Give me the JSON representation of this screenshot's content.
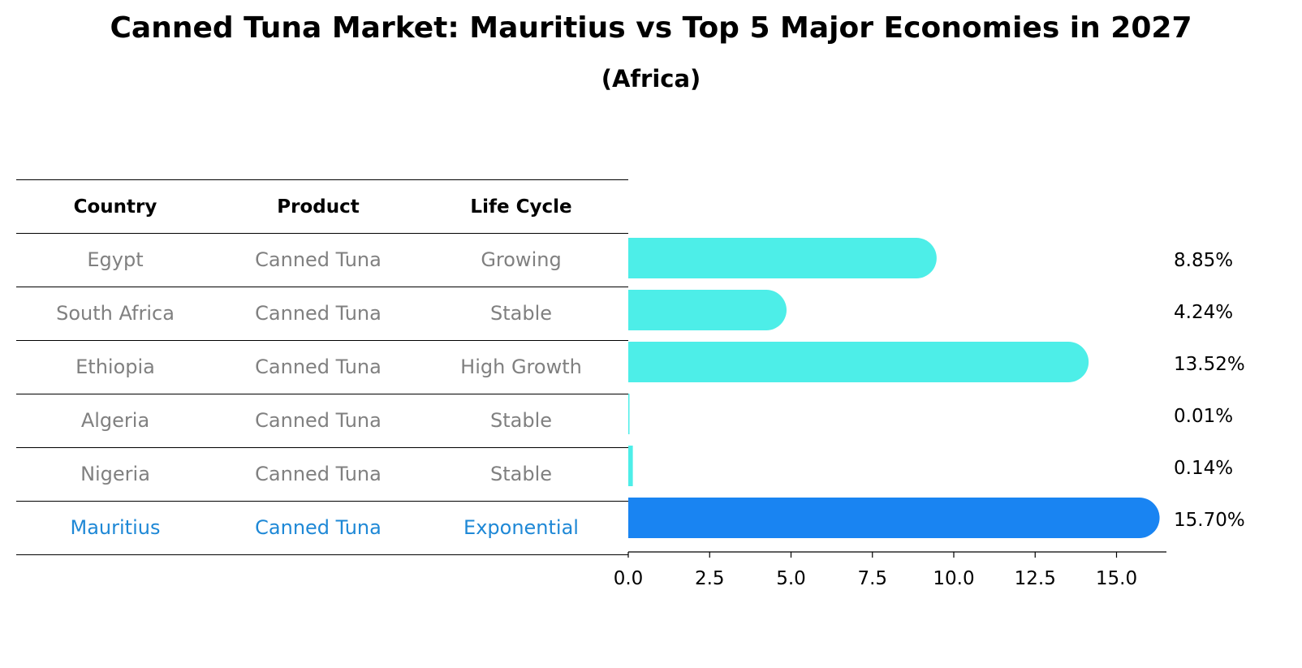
{
  "title": "Canned Tuna Market: Mauritius vs Top 5 Major Economies in 2027",
  "subtitle": "(Africa)",
  "table": {
    "headers": [
      "Country",
      "Product",
      "Life Cycle"
    ],
    "rows": [
      [
        "Egypt",
        "Canned Tuna",
        "Growing"
      ],
      [
        "South Africa",
        "Canned Tuna",
        "Stable"
      ],
      [
        "Ethiopia",
        "Canned Tuna",
        "High Growth"
      ],
      [
        "Algeria",
        "Canned Tuna",
        "Stable"
      ],
      [
        "Nigeria",
        "Canned Tuna",
        "Stable"
      ],
      [
        "Mauritius",
        "Canned Tuna",
        "Exponential"
      ]
    ],
    "highlight_row": 5
  },
  "colors": {
    "bar": "#4deee8",
    "highlight": "#1984f2",
    "highlight_text": "#1e88d6",
    "muted_text": "#808080"
  },
  "chart_data": {
    "type": "bar",
    "orientation": "horizontal",
    "categories": [
      "Egypt",
      "South Africa",
      "Ethiopia",
      "Algeria",
      "Nigeria",
      "Mauritius"
    ],
    "values": [
      8.85,
      4.24,
      13.52,
      0.01,
      0.14,
      15.7
    ],
    "value_labels": [
      "8.85%",
      "4.24%",
      "13.52%",
      "0.01%",
      "0.14%",
      "15.70%"
    ],
    "xlim": [
      0,
      16.5
    ],
    "xticks": [
      0.0,
      2.5,
      5.0,
      7.5,
      10.0,
      12.5,
      15.0
    ],
    "xtick_labels": [
      "0.0",
      "2.5",
      "5.0",
      "7.5",
      "10.0",
      "12.5",
      "15.0"
    ],
    "highlight_index": 5,
    "grid": false
  }
}
